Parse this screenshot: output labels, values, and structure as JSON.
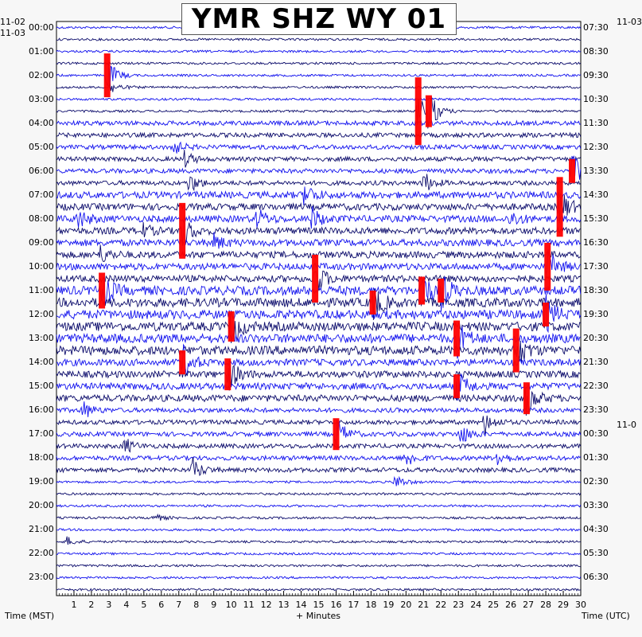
{
  "title": "YMR SHZ WY 01",
  "labels": {
    "left_date_prev": "11-02",
    "left_date": "11-03",
    "right_date_prev": "11-03",
    "right_date_next": "11-0",
    "x_left": "Time (MST)",
    "x_center": "+ Minutes",
    "x_right": "Time (UTC)"
  },
  "colors": {
    "trace_dark": "#0b0b6b",
    "trace_blue": "#1111ee",
    "clipped": "#ff0000",
    "background": "#ffffff",
    "page": "#f7f7f7"
  },
  "chart_data": {
    "type": "helicorder",
    "x_unit": "minutes",
    "xlim": [
      0,
      30
    ],
    "x_ticks": [
      "1",
      "2",
      "3",
      "4",
      "5",
      "6",
      "7",
      "8",
      "9",
      "10",
      "11",
      "12",
      "13",
      "14",
      "15",
      "16",
      "17",
      "18",
      "19",
      "20",
      "21",
      "22",
      "23",
      "24",
      "25",
      "26",
      "27",
      "28",
      "29",
      "30"
    ],
    "rows_per_hour": 2,
    "row_count": 48,
    "left_time_labels": [
      "00:00",
      "01:00",
      "02:00",
      "03:00",
      "04:00",
      "05:00",
      "06:00",
      "07:00",
      "08:00",
      "09:00",
      "10:00",
      "11:00",
      "12:00",
      "13:00",
      "14:00",
      "15:00",
      "16:00",
      "17:00",
      "18:00",
      "19:00",
      "20:00",
      "21:00",
      "22:00",
      "23:00"
    ],
    "right_time_labels": [
      "07:30",
      "08:30",
      "09:30",
      "10:30",
      "11:30",
      "12:30",
      "13:30",
      "14:30",
      "15:30",
      "16:30",
      "17:30",
      "18:30",
      "19:30",
      "20:30",
      "21:30",
      "22:30",
      "23:30",
      "00:30",
      "01:30",
      "02:30",
      "03:30",
      "04:30",
      "05:30",
      "06:30"
    ],
    "row_noise_level": [
      1,
      1,
      1,
      1,
      1,
      1,
      1,
      1,
      2,
      2,
      2,
      2,
      2,
      2,
      3,
      3,
      3,
      3,
      3,
      3,
      3,
      3,
      4,
      4,
      4,
      4,
      4,
      4,
      3,
      3,
      3,
      3,
      2,
      2,
      2,
      2,
      2,
      2,
      1,
      1,
      1,
      1,
      1,
      1,
      1,
      1,
      1,
      1
    ],
    "events": [
      {
        "row": 4,
        "minute": 2.9,
        "amp": 55,
        "clipped": true
      },
      {
        "row": 5,
        "minute": 3.1,
        "amp": 8
      },
      {
        "row": 7,
        "minute": 20.7,
        "amp": 85,
        "clipped": true
      },
      {
        "row": 7,
        "minute": 21.3,
        "amp": 40,
        "clipped": true
      },
      {
        "row": 10,
        "minute": 6.5,
        "amp": 14
      },
      {
        "row": 11,
        "minute": 7.3,
        "amp": 10
      },
      {
        "row": 12,
        "minute": 29.5,
        "amp": 30,
        "clipped": true
      },
      {
        "row": 13,
        "minute": 7.6,
        "amp": 12
      },
      {
        "row": 13,
        "minute": 21.0,
        "amp": 14
      },
      {
        "row": 14,
        "minute": 14.2,
        "amp": 14
      },
      {
        "row": 15,
        "minute": 28.8,
        "amp": 75,
        "clipped": true
      },
      {
        "row": 16,
        "minute": 1.2,
        "amp": 12
      },
      {
        "row": 16,
        "minute": 11.5,
        "amp": 12
      },
      {
        "row": 16,
        "minute": 14.6,
        "amp": 14
      },
      {
        "row": 16,
        "minute": 26.0,
        "amp": 10
      },
      {
        "row": 17,
        "minute": 4.8,
        "amp": 10
      },
      {
        "row": 17,
        "minute": 7.2,
        "amp": 70,
        "clipped": true
      },
      {
        "row": 18,
        "minute": 9.0,
        "amp": 10
      },
      {
        "row": 19,
        "minute": 2.5,
        "amp": 10
      },
      {
        "row": 20,
        "minute": 28.1,
        "amp": 60,
        "clipped": true
      },
      {
        "row": 21,
        "minute": 14.8,
        "amp": 60,
        "clipped": true
      },
      {
        "row": 22,
        "minute": 2.6,
        "amp": 45,
        "clipped": true
      },
      {
        "row": 22,
        "minute": 20.9,
        "amp": 35,
        "clipped": true
      },
      {
        "row": 22,
        "minute": 22.0,
        "amp": 30,
        "clipped": true
      },
      {
        "row": 23,
        "minute": 18.1,
        "amp": 30,
        "clipped": true
      },
      {
        "row": 24,
        "minute": 28.0,
        "amp": 30,
        "clipped": true
      },
      {
        "row": 25,
        "minute": 10.0,
        "amp": 38,
        "clipped": true
      },
      {
        "row": 26,
        "minute": 22.9,
        "amp": 45,
        "clipped": true
      },
      {
        "row": 27,
        "minute": 26.3,
        "amp": 55,
        "clipped": true
      },
      {
        "row": 28,
        "minute": 7.2,
        "amp": 30,
        "clipped": true
      },
      {
        "row": 29,
        "minute": 9.8,
        "amp": 40,
        "clipped": true
      },
      {
        "row": 30,
        "minute": 22.9,
        "amp": 30,
        "clipped": true
      },
      {
        "row": 31,
        "minute": 26.9,
        "amp": 40,
        "clipped": true
      },
      {
        "row": 32,
        "minute": 1.5,
        "amp": 12
      },
      {
        "row": 33,
        "minute": 24.5,
        "amp": 14
      },
      {
        "row": 34,
        "minute": 16.0,
        "amp": 40,
        "clipped": true
      },
      {
        "row": 34,
        "minute": 23.1,
        "amp": 14
      },
      {
        "row": 35,
        "minute": 3.9,
        "amp": 10
      },
      {
        "row": 36,
        "minute": 20.0,
        "amp": 12
      },
      {
        "row": 36,
        "minute": 25.2,
        "amp": 10
      },
      {
        "row": 37,
        "minute": 7.8,
        "amp": 14
      },
      {
        "row": 38,
        "minute": 19.4,
        "amp": 10
      },
      {
        "row": 41,
        "minute": 5.5,
        "amp": 6
      },
      {
        "row": 43,
        "minute": 0.6,
        "amp": 6
      }
    ]
  }
}
